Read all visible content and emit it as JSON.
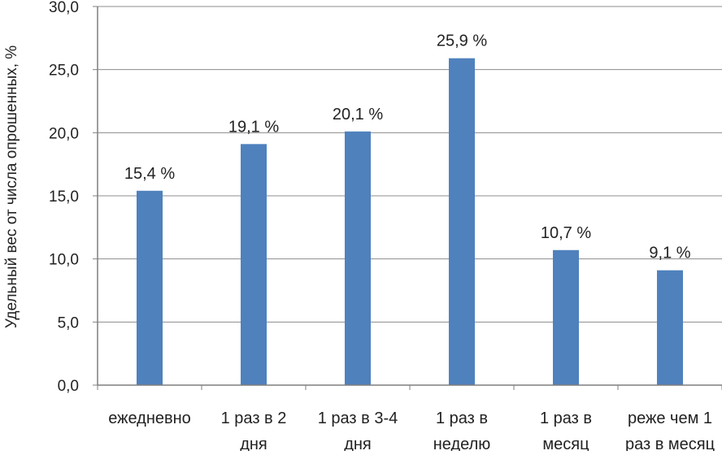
{
  "chart_data": {
    "type": "bar",
    "title": "",
    "xlabel": "",
    "ylabel": "Удельный вес от числа опрошенных, %",
    "ylim": [
      0,
      30
    ],
    "y_ticks": [
      "0,0",
      "5,0",
      "10,0",
      "15,0",
      "20,0",
      "25,0",
      "30,0"
    ],
    "y_tick_values": [
      0,
      5,
      10,
      15,
      20,
      25,
      30
    ],
    "grid": true,
    "categories": [
      [
        "ежедневно"
      ],
      [
        "1 раз в 2",
        "дня"
      ],
      [
        "1 раз в 3-4",
        "дня"
      ],
      [
        "1 раз в",
        "неделю"
      ],
      [
        "1 раз в",
        "месяц"
      ],
      [
        "реже чем 1",
        "раз в месяц"
      ]
    ],
    "values": [
      15.4,
      19.1,
      20.1,
      25.9,
      10.7,
      9.1
    ],
    "data_labels": [
      "15,4 %",
      "19,1 %",
      "20,1 %",
      "25,9 %",
      "10,7 %",
      "9,1 %"
    ],
    "colors": {
      "bar": "#4f81bd",
      "grid": "#8c8c8c",
      "axis": "#7f7f7f"
    }
  }
}
